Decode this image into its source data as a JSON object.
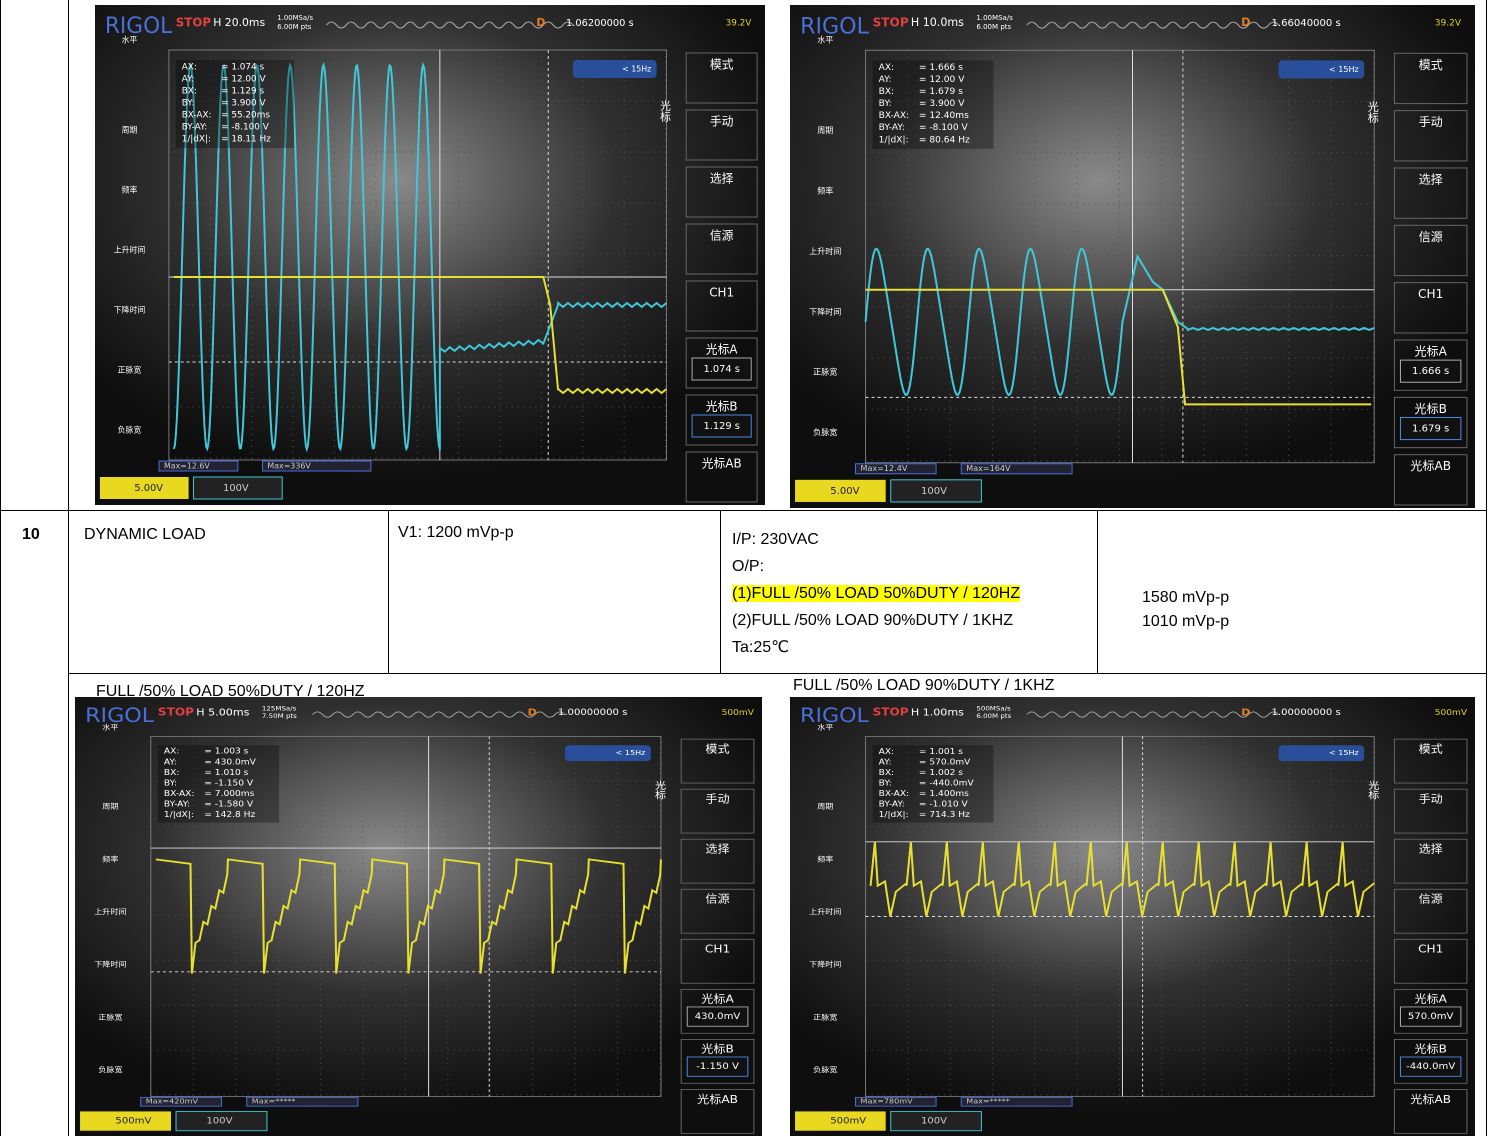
{
  "scope_menus": {
    "left": [
      "水平",
      "周期",
      "频率",
      "上升时间",
      "下降时间",
      "正脉宽",
      "负脉宽"
    ],
    "right": [
      "模式",
      "手动",
      "选择",
      "信源",
      "CH1",
      "光标A",
      "光标B",
      "光标AB"
    ],
    "side_mark": "光标"
  },
  "scopes": [
    {
      "brand": "RIGOL",
      "status": "STOP",
      "timebase": "H 20.0ms",
      "sample_rate": "1.00MSa/s",
      "points": "6.00M pts",
      "delay_label": "D",
      "delay": "1.06200000 s",
      "trigger_level": "39.2V",
      "trigger_filter": "< 15Hz",
      "readouts": [
        [
          "AX:",
          "= 1.074 s"
        ],
        [
          "AY:",
          "= 12.00 V"
        ],
        [
          "BX:",
          "= 1.129 s"
        ],
        [
          "BY:",
          "= 3.900 V"
        ],
        [
          "BX-AX:",
          "= 55.20ms"
        ],
        [
          "BY-AY:",
          "= -8.100 V"
        ],
        [
          "1/|dX|:",
          "= 18.11 Hz"
        ]
      ],
      "cursor_a": "1.074 s",
      "cursor_b": "1.129 s",
      "max1": "Max=12.6V",
      "max2": "Max=336V",
      "ch1_scale": "5.00V",
      "ch2_scale": "100V"
    },
    {
      "brand": "RIGOL",
      "status": "STOP",
      "timebase": "H 10.0ms",
      "sample_rate": "1.00MSa/s",
      "points": "6.00M pts",
      "delay_label": "D",
      "delay": "1.66040000 s",
      "trigger_level": "39.2V",
      "trigger_filter": "< 15Hz",
      "readouts": [
        [
          "AX:",
          "= 1.666 s"
        ],
        [
          "AY:",
          "= 12.00 V"
        ],
        [
          "BX:",
          "= 1.679 s"
        ],
        [
          "BY:",
          "= 3.900 V"
        ],
        [
          "BX-AX:",
          "= 12.40ms"
        ],
        [
          "BY-AY:",
          "= -8.100 V"
        ],
        [
          "1/|dX|:",
          "= 80.64 Hz"
        ]
      ],
      "cursor_a": "1.666 s",
      "cursor_b": "1.679 s",
      "max1": "Max=12.4V",
      "max2": "Max=164V",
      "ch1_scale": "5.00V",
      "ch2_scale": "100V"
    },
    {
      "brand": "RIGOL",
      "status": "STOP",
      "timebase": "H 5.00ms",
      "sample_rate": "125MSa/s",
      "points": "7.50M pts",
      "delay_label": "D",
      "delay": "1.00000000 s",
      "trigger_level": "500mV",
      "trigger_filter": "< 15Hz",
      "readouts": [
        [
          "AX:",
          "= 1.003 s"
        ],
        [
          "AY:",
          "= 430.0mV"
        ],
        [
          "BX:",
          "= 1.010 s"
        ],
        [
          "BY:",
          "= -1.150 V"
        ],
        [
          "BX-AX:",
          "= 7.000ms"
        ],
        [
          "BY-AY:",
          "= -1.580 V"
        ],
        [
          "1/|dX|:",
          "= 142.8 Hz"
        ]
      ],
      "cursor_a": "430.0mV",
      "cursor_b": "-1.150 V",
      "max1": "Max=420mV",
      "max2": "Max=*****",
      "ch1_scale": "500mV",
      "ch2_scale": "100V"
    },
    {
      "brand": "RIGOL",
      "status": "STOP",
      "timebase": "H 1.00ms",
      "sample_rate": "500MSa/s",
      "points": "6.00M pts",
      "delay_label": "D",
      "delay": "1.00000000 s",
      "trigger_level": "500mV",
      "trigger_filter": "< 15Hz",
      "readouts": [
        [
          "AX:",
          "= 1.001 s"
        ],
        [
          "AY:",
          "= 570.0mV"
        ],
        [
          "BX:",
          "= 1.002 s"
        ],
        [
          "BY:",
          "= -440.0mV"
        ],
        [
          "BX-AX:",
          "= 1.400ms"
        ],
        [
          "BY-AY:",
          "= -1.010 V"
        ],
        [
          "1/|dX|:",
          "= 714.3 Hz"
        ]
      ],
      "cursor_a": "570.0mV",
      "cursor_b": "-440.0mV",
      "max1": "Max=780mV",
      "max2": "Max=*****",
      "ch1_scale": "500mV",
      "ch2_scale": "100V"
    }
  ],
  "row10": {
    "number": "10",
    "test": "DYNAMIC LOAD",
    "spec": "V1:  1200  mVp-p",
    "conditions": [
      "I/P: 230VAC",
      "O/P:",
      "(1)FULL /50% LOAD 50%DUTY / 120HZ",
      "(2)FULL /50% LOAD 90%DUTY / 1KHZ",
      "Ta:25℃"
    ],
    "results": [
      "1580  mVp-p",
      "1010  mVp-p"
    ]
  },
  "captions": [
    "FULL /50% LOAD 50%DUTY / 120HZ",
    "FULL /50% LOAD 90%DUTY / 1KHZ"
  ]
}
